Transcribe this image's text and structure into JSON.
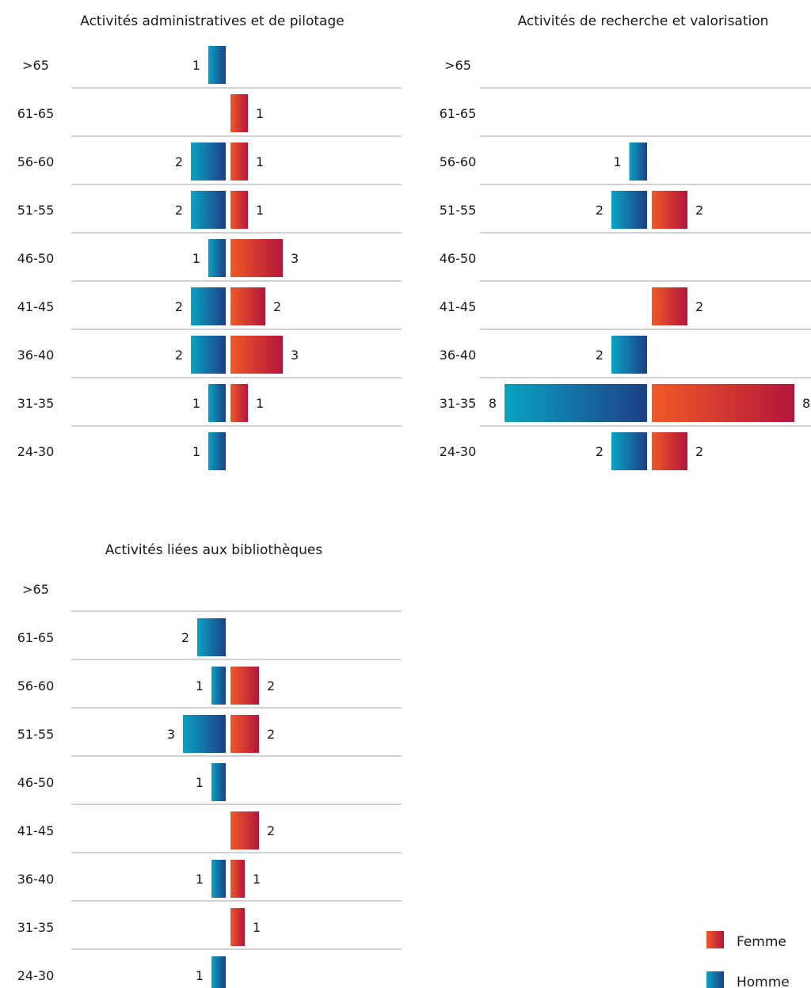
{
  "chart_data": [
    {
      "type": "bar",
      "orientation": "population-pyramid",
      "title": "Activités administratives et de pilotage",
      "categories": [
        ">65",
        "61-65",
        "56-60",
        "51-55",
        "46-50",
        "41-45",
        "36-40",
        "31-35",
        "24-30"
      ],
      "series": [
        {
          "name": "Homme",
          "values": [
            1,
            null,
            2,
            2,
            1,
            2,
            2,
            1,
            1
          ]
        },
        {
          "name": "Femme",
          "values": [
            null,
            1,
            1,
            1,
            3,
            2,
            3,
            1,
            null
          ]
        }
      ]
    },
    {
      "type": "bar",
      "orientation": "population-pyramid",
      "title": "Activités de recherche et valorisation",
      "categories": [
        ">65",
        "61-65",
        "56-60",
        "51-55",
        "46-50",
        "41-45",
        "36-40",
        "31-35",
        "24-30"
      ],
      "series": [
        {
          "name": "Homme",
          "values": [
            null,
            null,
            1,
            2,
            null,
            null,
            2,
            8,
            2
          ]
        },
        {
          "name": "Femme",
          "values": [
            null,
            null,
            null,
            2,
            null,
            2,
            null,
            8,
            2
          ]
        }
      ]
    },
    {
      "type": "bar",
      "orientation": "population-pyramid",
      "title": "Activités liées aux bibliothèques",
      "categories": [
        ">65",
        "61-65",
        "56-60",
        "51-55",
        "46-50",
        "41-45",
        "36-40",
        "31-35",
        "24-30"
      ],
      "series": [
        {
          "name": "Homme",
          "values": [
            null,
            2,
            1,
            3,
            1,
            null,
            1,
            null,
            1
          ]
        },
        {
          "name": "Femme",
          "values": [
            null,
            null,
            2,
            2,
            null,
            2,
            1,
            1,
            null
          ]
        }
      ]
    }
  ],
  "legend": {
    "position": "bottom-right",
    "items": [
      {
        "label": "Femme",
        "color": "#e8452b"
      },
      {
        "label": "Homme",
        "color": "#1a8ab0"
      }
    ]
  },
  "colors": {
    "homme_light": "#0aa3c2",
    "homme_dark": "#1d3f86",
    "femme_light": "#f05a28",
    "femme_dark": "#b3163a",
    "gridline": "#a6a6a6"
  }
}
